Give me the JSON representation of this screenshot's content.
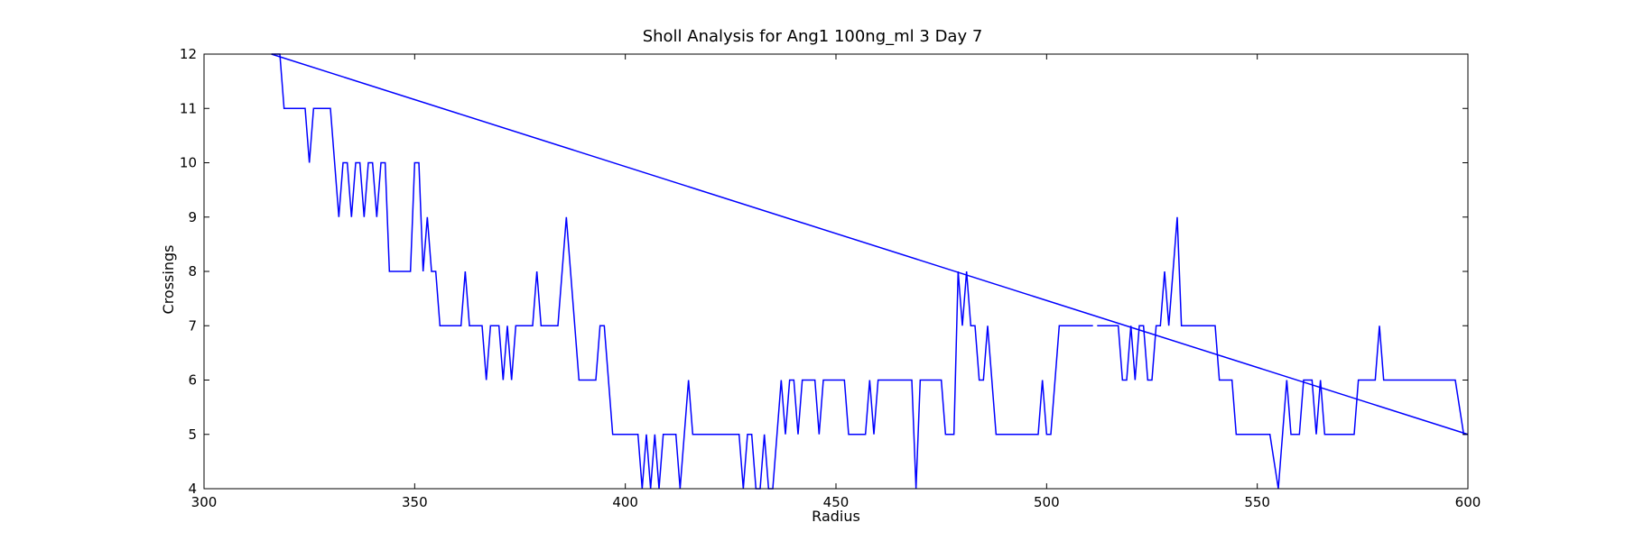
{
  "chart_data": {
    "type": "line",
    "title": "Sholl Analysis for Ang1 100ng_ml 3 Day 7",
    "xlabel": "Radius",
    "ylabel": "Crossings",
    "xlim": [
      300,
      600
    ],
    "ylim": [
      4,
      12
    ],
    "xticks": [
      300,
      350,
      400,
      450,
      500,
      550,
      600
    ],
    "yticks": [
      4,
      5,
      6,
      7,
      8,
      9,
      10,
      11,
      12
    ],
    "grid": false,
    "line_color": "#0000ff",
    "series": [
      {
        "points": [
          [
            316,
            12
          ],
          [
            318,
            12
          ],
          [
            319,
            11
          ],
          [
            321,
            11
          ],
          [
            324,
            11
          ],
          [
            325,
            10
          ],
          [
            326,
            11
          ],
          [
            328,
            11
          ],
          [
            330,
            11
          ],
          [
            332,
            9
          ],
          [
            333,
            10
          ],
          [
            334,
            10
          ],
          [
            335,
            9
          ],
          [
            336,
            10
          ],
          [
            337,
            10
          ],
          [
            338,
            9
          ],
          [
            339,
            10
          ],
          [
            340,
            10
          ],
          [
            341,
            9
          ],
          [
            342,
            10
          ],
          [
            343,
            10
          ],
          [
            344,
            8
          ],
          [
            349,
            8
          ],
          [
            350,
            10
          ],
          [
            351,
            10
          ],
          [
            352,
            8
          ],
          [
            353,
            9
          ],
          [
            354,
            8
          ],
          [
            355,
            8
          ],
          [
            356,
            7
          ],
          [
            361,
            7
          ],
          [
            362,
            8
          ],
          [
            363,
            7
          ],
          [
            366,
            7
          ],
          [
            367,
            6
          ],
          [
            368,
            7
          ],
          [
            370,
            7
          ],
          [
            371,
            6
          ],
          [
            372,
            7
          ],
          [
            373,
            6
          ],
          [
            374,
            7
          ],
          [
            378,
            7
          ],
          [
            379,
            8
          ],
          [
            380,
            7
          ],
          [
            384,
            7
          ],
          [
            386,
            9
          ],
          [
            389,
            6
          ],
          [
            393,
            6
          ],
          [
            394,
            7
          ],
          [
            395,
            7
          ],
          [
            397,
            5
          ],
          [
            403,
            5
          ],
          [
            404,
            4
          ],
          [
            405,
            5
          ],
          [
            406,
            4
          ],
          [
            407,
            5
          ],
          [
            408,
            4
          ],
          [
            409,
            5
          ],
          [
            412,
            5
          ],
          [
            413,
            4
          ],
          [
            415,
            6
          ],
          [
            416,
            5
          ],
          [
            427,
            5
          ],
          [
            428,
            4
          ],
          [
            429,
            5
          ],
          [
            430,
            5
          ],
          [
            431,
            4
          ],
          [
            432,
            4
          ],
          [
            433,
            5
          ],
          [
            434,
            4
          ],
          [
            435,
            4
          ],
          [
            437,
            6
          ],
          [
            438,
            5
          ],
          [
            439,
            6
          ],
          [
            440,
            6
          ],
          [
            441,
            5
          ],
          [
            442,
            6
          ],
          [
            445,
            6
          ],
          [
            446,
            5
          ],
          [
            447,
            6
          ],
          [
            452,
            6
          ],
          [
            453,
            5
          ],
          [
            457,
            5
          ],
          [
            458,
            6
          ],
          [
            459,
            5
          ],
          [
            460,
            6
          ],
          [
            468,
            6
          ],
          [
            469,
            4
          ],
          [
            470,
            6
          ],
          [
            475,
            6
          ],
          [
            476,
            5
          ],
          [
            478,
            5
          ],
          [
            479,
            8
          ],
          [
            480,
            7
          ],
          [
            481,
            8
          ],
          [
            482,
            7
          ],
          [
            483,
            7
          ],
          [
            484,
            6
          ],
          [
            485,
            6
          ],
          [
            486,
            7
          ],
          [
            488,
            5
          ],
          [
            498,
            5
          ],
          [
            499,
            6
          ],
          [
            500,
            5
          ],
          [
            501,
            5
          ],
          [
            503,
            7
          ],
          [
            511,
            7
          ]
        ]
      },
      {
        "points": [
          [
            512,
            7
          ],
          [
            517,
            7
          ],
          [
            518,
            6
          ],
          [
            519,
            6
          ],
          [
            520,
            7
          ],
          [
            521,
            6
          ],
          [
            522,
            7
          ],
          [
            523,
            7
          ],
          [
            524,
            6
          ],
          [
            525,
            6
          ],
          [
            526,
            7
          ],
          [
            527,
            7
          ],
          [
            528,
            8
          ],
          [
            529,
            7
          ],
          [
            531,
            9
          ],
          [
            532,
            7
          ],
          [
            540,
            7
          ],
          [
            541,
            6
          ],
          [
            544,
            6
          ],
          [
            545,
            5
          ],
          [
            552,
            5
          ],
          [
            553,
            5
          ],
          [
            555,
            4
          ],
          [
            557,
            6
          ],
          [
            558,
            5
          ],
          [
            560,
            5
          ],
          [
            561,
            6
          ],
          [
            563,
            6
          ],
          [
            564,
            5
          ],
          [
            565,
            6
          ],
          [
            566,
            5
          ],
          [
            573,
            5
          ],
          [
            574,
            6
          ],
          [
            578,
            6
          ],
          [
            579,
            7
          ],
          [
            580,
            6
          ],
          [
            597,
            6
          ],
          [
            599,
            5
          ],
          [
            600,
            5
          ]
        ]
      },
      {
        "points": [
          [
            316,
            12
          ],
          [
            600,
            5
          ]
        ]
      }
    ]
  }
}
